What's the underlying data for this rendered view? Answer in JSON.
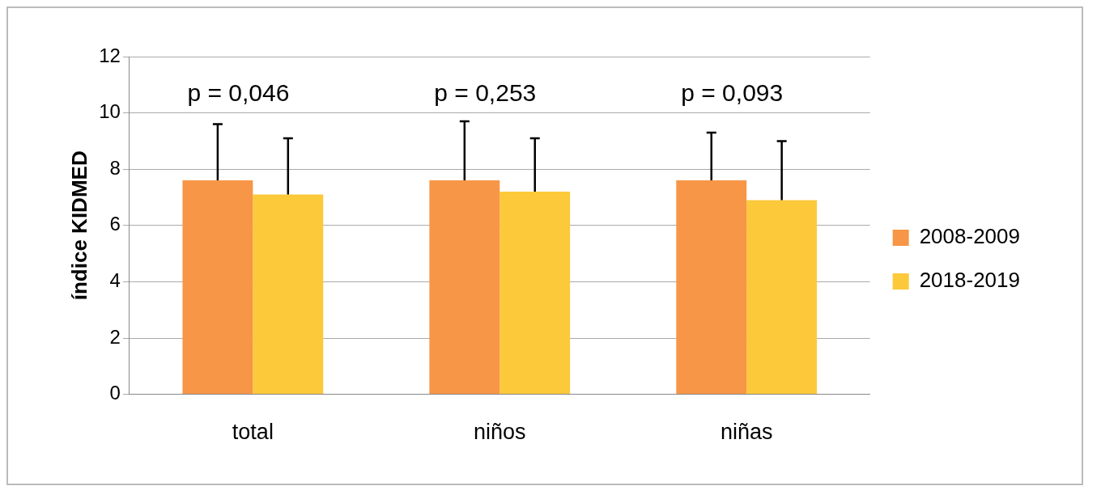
{
  "chart_data": {
    "type": "bar",
    "ylabel": "índice KIDMED",
    "categories": [
      "total",
      "niños",
      "niñas"
    ],
    "series": [
      {
        "name": "2008-2009",
        "color": "#f79646",
        "values": [
          7.6,
          7.6,
          7.6
        ],
        "errors": [
          [
            7.6,
            9.6
          ],
          [
            7.6,
            9.7
          ],
          [
            7.6,
            9.3
          ]
        ]
      },
      {
        "name": "2018-2019",
        "color": "#fcc93a",
        "values": [
          7.1,
          7.2,
          6.9
        ],
        "errors": [
          [
            7.1,
            9.1
          ],
          [
            7.2,
            9.1
          ],
          [
            6.9,
            9.0
          ]
        ]
      }
    ],
    "ylim": [
      0,
      12
    ],
    "yticks": [
      0,
      2,
      4,
      6,
      8,
      10,
      12
    ],
    "grid": "y",
    "legend": "right",
    "annotations": [
      "p = 0,046",
      "p = 0,253",
      "p = 0,093"
    ]
  }
}
